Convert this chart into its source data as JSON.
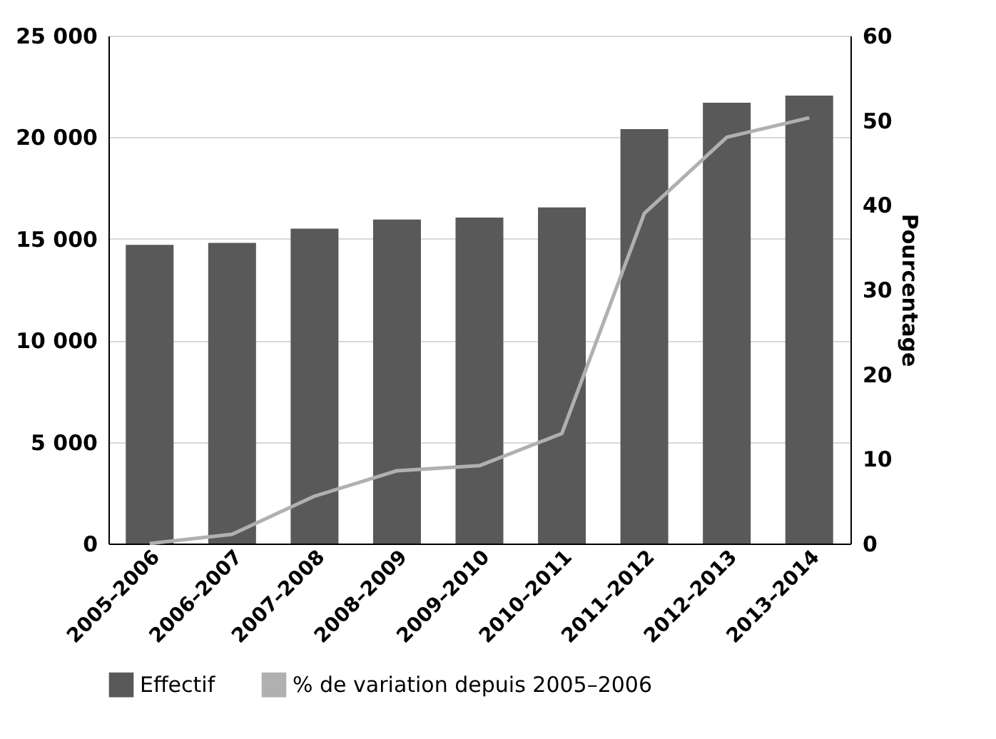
{
  "chart_data": {
    "type": "bar",
    "ylabel": null,
    "y2label": "Pourcentage",
    "categories": [
      "2005–2006",
      "2006–2007",
      "2007–2008",
      "2008–2009",
      "2009–2010",
      "2010–2011",
      "2011–2012",
      "2012–2013",
      "2013–2014"
    ],
    "series": [
      {
        "name": "Effectif",
        "color": "#595959",
        "values": [
          14700,
          14800,
          15500,
          15950,
          16050,
          16550,
          20400,
          21700,
          22050
        ]
      },
      {
        "name": "% de variation depuis 2005–2006",
        "type": "line",
        "axis": "y2",
        "color": "#b0b0b0",
        "values": [
          0,
          1.1,
          5.6,
          8.6,
          9.2,
          13.0,
          39.0,
          48.0,
          50.3
        ]
      }
    ],
    "ylim": [
      0,
      25000
    ],
    "yticks": [
      {
        "value": 0,
        "label": "0"
      },
      {
        "value": 5000,
        "label": "5 000"
      },
      {
        "value": 10000,
        "label": "10 000"
      },
      {
        "value": 15000,
        "label": "15 000"
      },
      {
        "value": 20000,
        "label": "20 000"
      },
      {
        "value": 25000,
        "label": "25 000"
      }
    ],
    "y2lim": [
      0,
      60
    ],
    "y2ticks": [
      0,
      10,
      20,
      30,
      40,
      50,
      60
    ],
    "grid": "y",
    "legend": "bottom",
    "marker": "none"
  }
}
